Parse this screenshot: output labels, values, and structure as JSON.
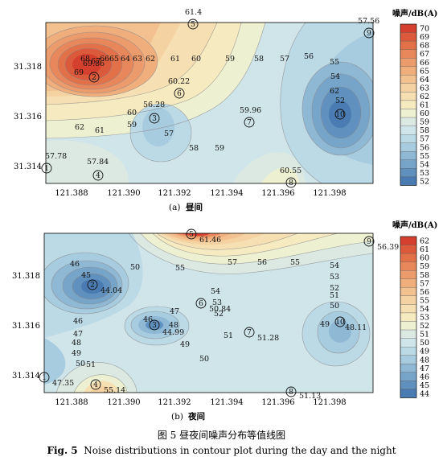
{
  "chart_data": [
    {
      "type": "contour",
      "panel_label": "(a)",
      "subtitle": "昼间",
      "colorbar_title": "噪声/dB(A)",
      "colorbar_levels": [
        70,
        69,
        68,
        67,
        66,
        65,
        64,
        63,
        62,
        61,
        60,
        59,
        58,
        57,
        56,
        55,
        54,
        53,
        52
      ],
      "colorbar_colors": [
        "#d5402e",
        "#dc5a3c",
        "#e27149",
        "#e8875c",
        "#ec9b6c",
        "#f0ae7c",
        "#f3c08f",
        "#f5d2a2",
        "#f6e0b3",
        "#f6eac0",
        "#eef0d2",
        "#dce9e3",
        "#cfe5ea",
        "#bcd9e6",
        "#a7cbdf",
        "#8fb8d4",
        "#77a5c9",
        "#5f90be",
        "#4a7cb3"
      ],
      "x_ticks": [
        "121.388",
        "121.390",
        "121.392",
        "121.394",
        "121.396",
        "121.398"
      ],
      "y_ticks": [
        "31.318",
        "31.316",
        "31.314"
      ],
      "sites": [
        {
          "id": "1",
          "label": "57.78"
        },
        {
          "id": "2",
          "label": "69.86"
        },
        {
          "id": "3",
          "label": "56.28"
        },
        {
          "id": "4",
          "label": "57.84"
        },
        {
          "id": "5",
          "label": "61.4"
        },
        {
          "id": "6",
          "label": "60.22"
        },
        {
          "id": "7",
          "label": "59.96"
        },
        {
          "id": "8",
          "label": "60.55"
        },
        {
          "id": "9",
          "label": "57.56"
        },
        {
          "id": "10",
          "label": "52"
        }
      ],
      "contour_labels": [
        "69",
        "68",
        "67",
        "66",
        "65",
        "64",
        "63",
        "62",
        "61",
        "60",
        "59",
        "58",
        "57",
        "56",
        "55",
        "54",
        "62",
        "61",
        "60",
        "59",
        "58",
        "57",
        "59"
      ]
    },
    {
      "type": "contour",
      "panel_label": "(b)",
      "subtitle": "夜间",
      "colorbar_title": "噪声/dB(A)",
      "colorbar_levels": [
        62,
        61,
        60,
        59,
        58,
        57,
        56,
        55,
        54,
        53,
        52,
        51,
        50,
        49,
        48,
        47,
        46,
        45,
        44
      ],
      "colorbar_colors": [
        "#d5402e",
        "#dc5a3c",
        "#e27149",
        "#e8875c",
        "#ec9b6c",
        "#f0ae7c",
        "#f3c08f",
        "#f5d2a2",
        "#f6e0b3",
        "#f6eac0",
        "#eef0d2",
        "#dce9e3",
        "#cfe5ea",
        "#bcd9e6",
        "#a7cbdf",
        "#8fb8d4",
        "#77a5c9",
        "#5f90be",
        "#4a7cb3"
      ],
      "x_ticks": [
        "121.388",
        "121.390",
        "121.392",
        "121.394",
        "121.396",
        "121.398"
      ],
      "y_ticks": [
        "31.318",
        "31.316",
        "31.314"
      ],
      "sites": [
        {
          "id": "1",
          "label": "47.35"
        },
        {
          "id": "2",
          "label": "44.04"
        },
        {
          "id": "3",
          "label": "44.99"
        },
        {
          "id": "4",
          "label": "55.14"
        },
        {
          "id": "5",
          "label": "61.46"
        },
        {
          "id": "6",
          "label": "50.84"
        },
        {
          "id": "7",
          "label": "51.28"
        },
        {
          "id": "8",
          "label": "51.13"
        },
        {
          "id": "9",
          "label": "56.39"
        },
        {
          "id": "10",
          "label": "48.11"
        }
      ],
      "contour_labels": [
        "46",
        "45",
        "50",
        "55",
        "57",
        "56",
        "55",
        "54",
        "53",
        "52",
        "51",
        "50",
        "54",
        "53",
        "52",
        "51",
        "47",
        "46",
        "48",
        "46",
        "47",
        "48",
        "49",
        "49",
        "50",
        "51",
        "50",
        "49"
      ]
    }
  ],
  "caption": {
    "cn": "图 5  昼夜间噪声分布等值线图",
    "en_prefix": "Fig. 5",
    "en_text": "Noise distributions in contour plot during the day and the night"
  }
}
